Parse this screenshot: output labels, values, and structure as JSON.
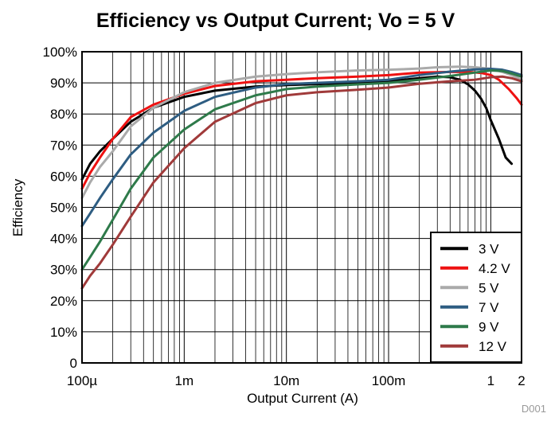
{
  "chart_data": {
    "type": "line",
    "title": "Efficiency vs Output Current; Vo = 5 V",
    "xlabel": "Output Current (A)",
    "ylabel": "Efficiency",
    "xscale": "log",
    "xlim": [
      0.0001,
      2
    ],
    "ylim": [
      0,
      100
    ],
    "grid": true,
    "legend_position": "bottom-right",
    "watermark": "D001",
    "x_ticks": [
      {
        "value": 0.0001,
        "label": "100µ"
      },
      {
        "value": 0.001,
        "label": "1m"
      },
      {
        "value": 0.01,
        "label": "10m"
      },
      {
        "value": 0.1,
        "label": "100m"
      },
      {
        "value": 1,
        "label": "1"
      },
      {
        "value": 2,
        "label": "2"
      }
    ],
    "y_ticks": [
      {
        "value": 0,
        "label": "0"
      },
      {
        "value": 10,
        "label": "10%"
      },
      {
        "value": 20,
        "label": "20%"
      },
      {
        "value": 30,
        "label": "30%"
      },
      {
        "value": 40,
        "label": "40%"
      },
      {
        "value": 50,
        "label": "50%"
      },
      {
        "value": 60,
        "label": "60%"
      },
      {
        "value": 70,
        "label": "70%"
      },
      {
        "value": 80,
        "label": "80%"
      },
      {
        "value": 90,
        "label": "90%"
      },
      {
        "value": 100,
        "label": "100%"
      }
    ],
    "series": [
      {
        "name": "3 V",
        "color": "#000000",
        "points": [
          [
            0.0001,
            59
          ],
          [
            0.00012,
            64
          ],
          [
            0.00015,
            68
          ],
          [
            0.0002,
            72
          ],
          [
            0.0003,
            77.5
          ],
          [
            0.0005,
            82
          ],
          [
            0.001,
            85.5
          ],
          [
            0.002,
            87.5
          ],
          [
            0.005,
            88.8
          ],
          [
            0.01,
            89.3
          ],
          [
            0.02,
            89.6
          ],
          [
            0.05,
            90
          ],
          [
            0.1,
            90.5
          ],
          [
            0.2,
            91.5
          ],
          [
            0.3,
            92
          ],
          [
            0.4,
            91.8
          ],
          [
            0.5,
            91
          ],
          [
            0.6,
            89.5
          ],
          [
            0.7,
            87.5
          ],
          [
            0.8,
            85
          ],
          [
            0.9,
            82
          ],
          [
            1.0,
            78
          ],
          [
            1.2,
            72
          ],
          [
            1.4,
            66
          ],
          [
            1.6,
            64
          ]
        ]
      },
      {
        "name": "4.2 V",
        "color": "#ee1111",
        "points": [
          [
            0.0001,
            56
          ],
          [
            0.00012,
            61
          ],
          [
            0.00015,
            66
          ],
          [
            0.0002,
            72
          ],
          [
            0.0003,
            79
          ],
          [
            0.0005,
            83
          ],
          [
            0.001,
            86.5
          ],
          [
            0.002,
            89
          ],
          [
            0.005,
            90.5
          ],
          [
            0.01,
            91
          ],
          [
            0.02,
            91.5
          ],
          [
            0.05,
            92
          ],
          [
            0.1,
            92.5
          ],
          [
            0.2,
            93.3
          ],
          [
            0.4,
            93.5
          ],
          [
            0.6,
            93.5
          ],
          [
            0.8,
            93.2
          ],
          [
            1.0,
            92.5
          ],
          [
            1.2,
            91
          ],
          [
            1.5,
            88
          ],
          [
            1.8,
            85
          ],
          [
            2,
            83
          ]
        ]
      },
      {
        "name": "5 V",
        "color": "#aaaaaa",
        "points": [
          [
            0.0001,
            53
          ],
          [
            0.00012,
            58
          ],
          [
            0.00015,
            63
          ],
          [
            0.0002,
            68
          ],
          [
            0.0003,
            76
          ],
          [
            0.0005,
            82
          ],
          [
            0.001,
            87
          ],
          [
            0.002,
            90
          ],
          [
            0.005,
            92
          ],
          [
            0.01,
            92.8
          ],
          [
            0.02,
            93.4
          ],
          [
            0.05,
            94
          ],
          [
            0.1,
            94.2
          ],
          [
            0.2,
            94.6
          ],
          [
            0.3,
            95
          ],
          [
            0.5,
            95.2
          ],
          [
            0.7,
            95
          ],
          [
            1.0,
            94.5
          ],
          [
            1.3,
            93.5
          ],
          [
            1.6,
            92.5
          ],
          [
            2,
            91
          ]
        ]
      },
      {
        "name": "7 V",
        "color": "#2e5d82",
        "points": [
          [
            0.0001,
            44
          ],
          [
            0.00012,
            48
          ],
          [
            0.00015,
            53
          ],
          [
            0.0002,
            59
          ],
          [
            0.0003,
            67
          ],
          [
            0.0005,
            74
          ],
          [
            0.001,
            81
          ],
          [
            0.002,
            85.5
          ],
          [
            0.005,
            88.5
          ],
          [
            0.01,
            89.6
          ],
          [
            0.02,
            90
          ],
          [
            0.05,
            90.5
          ],
          [
            0.1,
            91
          ],
          [
            0.2,
            92.5
          ],
          [
            0.4,
            93.6
          ],
          [
            0.7,
            94.3
          ],
          [
            1.0,
            94.5
          ],
          [
            1.3,
            94.2
          ],
          [
            1.6,
            93.5
          ],
          [
            2,
            92.5
          ]
        ]
      },
      {
        "name": "9 V",
        "color": "#2e7a4a",
        "points": [
          [
            0.0001,
            30
          ],
          [
            0.00012,
            34
          ],
          [
            0.00015,
            39
          ],
          [
            0.0002,
            46
          ],
          [
            0.0003,
            56
          ],
          [
            0.0005,
            66
          ],
          [
            0.001,
            75
          ],
          [
            0.002,
            81.5
          ],
          [
            0.005,
            86
          ],
          [
            0.01,
            88
          ],
          [
            0.02,
            88.8
          ],
          [
            0.05,
            89.5
          ],
          [
            0.1,
            90
          ],
          [
            0.2,
            91
          ],
          [
            0.4,
            92.2
          ],
          [
            0.7,
            93.3
          ],
          [
            1.0,
            94
          ],
          [
            1.3,
            93.8
          ],
          [
            1.6,
            93
          ],
          [
            2,
            92
          ]
        ]
      },
      {
        "name": "12 V",
        "color": "#a03a3a",
        "points": [
          [
            0.0001,
            24
          ],
          [
            0.00012,
            28
          ],
          [
            0.00015,
            32
          ],
          [
            0.0002,
            38
          ],
          [
            0.0003,
            47
          ],
          [
            0.0005,
            58
          ],
          [
            0.001,
            69
          ],
          [
            0.002,
            77.5
          ],
          [
            0.005,
            83.5
          ],
          [
            0.01,
            86
          ],
          [
            0.02,
            87
          ],
          [
            0.05,
            87.8
          ],
          [
            0.1,
            88.5
          ],
          [
            0.2,
            89.7
          ],
          [
            0.4,
            90.5
          ],
          [
            0.7,
            91
          ],
          [
            1.0,
            91.8
          ],
          [
            1.3,
            92
          ],
          [
            1.6,
            91.5
          ],
          [
            2,
            90.5
          ]
        ]
      }
    ]
  }
}
